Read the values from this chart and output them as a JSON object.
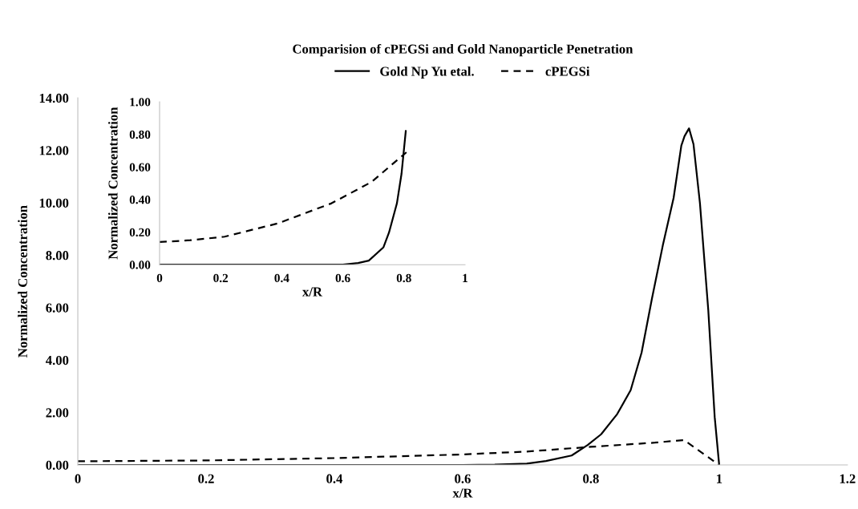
{
  "chart_data": [
    {
      "type": "line",
      "title": "Comparision of cPEGSi and Gold Nanoparticle Penetration",
      "xlabel": "x/R",
      "ylabel": "Normalized Concentration",
      "legend": "top",
      "grid": false,
      "xlim": [
        0,
        1.2
      ],
      "xticks": [
        0,
        0.2,
        0.4,
        0.6,
        0.8,
        1,
        1.2
      ],
      "ylim": [
        0,
        14
      ],
      "yticks": [
        {
          "value": 0,
          "label": "0.00"
        },
        {
          "value": 2,
          "label": "2.00"
        },
        {
          "value": 4,
          "label": "4.00"
        },
        {
          "value": 6,
          "label": "6.00"
        },
        {
          "value": 8,
          "label": "8.00"
        },
        {
          "value": 10,
          "label": "10.00"
        },
        {
          "value": 12,
          "label": "12.00"
        },
        {
          "value": 14,
          "label": "14.00"
        }
      ],
      "series": [
        {
          "name": "Gold Np Yu etal.",
          "color": "#000000",
          "line_style": "solid",
          "x": [
            0,
            0.6,
            0.65,
            0.7,
            0.73,
            0.77,
            0.795,
            0.816,
            0.841,
            0.862,
            0.879,
            0.895,
            0.912,
            0.929,
            0.941,
            0.946,
            0.953,
            0.96,
            0.97,
            0.983,
            0.993,
            1.0
          ],
          "values": [
            0,
            0,
            0.01,
            0.05,
            0.15,
            0.36,
            0.76,
            1.17,
            1.94,
            2.85,
            4.28,
            6.32,
            8.36,
            10.19,
            12.18,
            12.54,
            12.84,
            12.23,
            9.99,
            5.91,
            1.83,
            0
          ]
        },
        {
          "name": "cPEGSi",
          "color": "#000000",
          "line_style": "dashed",
          "x": [
            0,
            0.2,
            0.4,
            0.6,
            0.7,
            0.8,
            0.9,
            0.945,
            1.0
          ],
          "values": [
            0.14,
            0.17,
            0.26,
            0.4,
            0.51,
            0.69,
            0.85,
            0.95,
            0
          ]
        }
      ]
    },
    {
      "type": "line",
      "xlabel": "x/R",
      "ylabel": "Normalized Concentration",
      "grid": false,
      "xlim": [
        0,
        1
      ],
      "xticks": [
        0,
        0.2,
        0.4,
        0.6,
        0.8,
        1
      ],
      "ylim": [
        0,
        1
      ],
      "yticks": [
        {
          "value": 0,
          "label": "0.00"
        },
        {
          "value": 0.2,
          "label": "0.20"
        },
        {
          "value": 0.4,
          "label": "0.40"
        },
        {
          "value": 0.6,
          "label": "0.60"
        },
        {
          "value": 0.8,
          "label": "0.80"
        },
        {
          "value": 1,
          "label": "1.00"
        }
      ],
      "series": [
        {
          "color": "#000000",
          "line_style": "solid",
          "x": [
            0,
            0.6,
            0.65,
            0.685,
            0.733,
            0.751,
            0.777,
            0.792,
            0.806
          ],
          "values": [
            0,
            0,
            0.01,
            0.025,
            0.107,
            0.197,
            0.377,
            0.557,
            0.82
          ]
        },
        {
          "color": "#000000",
          "line_style": "dashed",
          "x": [
            0,
            0.1,
            0.213,
            0.388,
            0.563,
            0.694,
            0.808
          ],
          "values": [
            0.139,
            0.15,
            0.172,
            0.254,
            0.377,
            0.508,
            0.69
          ]
        }
      ]
    }
  ]
}
